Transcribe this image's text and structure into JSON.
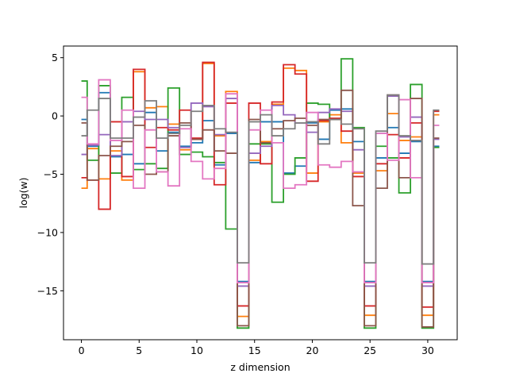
{
  "chart_data": {
    "type": "line",
    "drawstyle": "steps-mid",
    "xlabel": "z dimension",
    "ylabel": "log(w)",
    "xlim": [
      -1.55,
      32.55
    ],
    "ylim": [
      -19.2,
      6.0
    ],
    "xticks": [
      0,
      5,
      10,
      15,
      20,
      25,
      30
    ],
    "yticks": [
      5,
      0,
      -5,
      -10,
      -15
    ],
    "ytick_labels": [
      "5",
      "0",
      "−5",
      "−10",
      "−15"
    ],
    "grid": false,
    "x": [
      0,
      1,
      2,
      3,
      4,
      5,
      6,
      7,
      8,
      9,
      10,
      11,
      12,
      13,
      14,
      15,
      16,
      17,
      18,
      19,
      20,
      21,
      22,
      23,
      24,
      25,
      26,
      27,
      28,
      29,
      30,
      31
    ],
    "series": [
      {
        "color": "#1f77b4",
        "values": [
          -0.3,
          -2.6,
          2.0,
          -3.5,
          -3.3,
          -4.1,
          0.3,
          -3.0,
          -1.4,
          -2.6,
          -2.3,
          -0.4,
          -4.2,
          -1.5,
          -14.2,
          -4.0,
          -0.5,
          -0.5,
          -4.9,
          -4.3,
          -0.6,
          -2.0,
          0.5,
          0.6,
          -2.2,
          -14.2,
          -3.6,
          -1.0,
          -3.2,
          -2.2,
          -14.2,
          -2.6
        ]
      },
      {
        "color": "#ff7f0e",
        "values": [
          -6.2,
          -2.8,
          -5.4,
          -3.0,
          -5.5,
          3.8,
          0.7,
          0.8,
          -0.7,
          -2.9,
          -2.0,
          4.5,
          -1.7,
          2.1,
          -17.2,
          -3.8,
          -2.2,
          1.0,
          4.1,
          3.9,
          -4.9,
          -0.5,
          0.1,
          -2.3,
          -4.9,
          -17.1,
          -4.7,
          0.2,
          -2.1,
          -1.8,
          -17.1,
          0.1
        ]
      },
      {
        "color": "#2ca02c",
        "values": [
          3.0,
          -3.8,
          2.6,
          -4.9,
          1.6,
          -4.6,
          -4.1,
          -4.5,
          2.4,
          -3.3,
          -3.1,
          -3.5,
          -4.0,
          -9.7,
          -18.2,
          -2.4,
          -2.4,
          -7.4,
          -5.0,
          -3.6,
          1.1,
          1.0,
          -0.3,
          4.9,
          -1.0,
          -18.2,
          -2.6,
          -3.6,
          -6.6,
          2.7,
          -18.2,
          -2.7
        ]
      },
      {
        "color": "#d62728",
        "values": [
          -5.3,
          -5.5,
          -8.0,
          -0.5,
          -5.2,
          4.0,
          -2.7,
          -1.0,
          -1.2,
          0.5,
          -1.9,
          4.6,
          -5.9,
          1.1,
          -16.3,
          1.1,
          -4.1,
          1.2,
          4.4,
          3.6,
          -5.6,
          -0.4,
          -0.2,
          -1.3,
          -5.2,
          -16.3,
          -4.1,
          -1.6,
          -3.6,
          -0.6,
          -16.4,
          0.4
        ]
      },
      {
        "color": "#9467bd",
        "values": [
          -3.3,
          -2.5,
          -1.6,
          -3.4,
          -0.5,
          0.4,
          -0.3,
          -0.3,
          -1.0,
          -2.7,
          1.1,
          0.8,
          -1.6,
          1.5,
          -14.6,
          -3.2,
          -2.6,
          0.9,
          0.1,
          -0.6,
          -1.4,
          0.3,
          0.6,
          0.4,
          -2.9,
          -14.6,
          -1.5,
          1.7,
          -1.8,
          -0.1,
          -14.6,
          -2.0
        ]
      },
      {
        "color": "#8c564b",
        "values": [
          -0.6,
          -5.5,
          -3.4,
          -2.6,
          -2.2,
          -0.8,
          -5.0,
          -4.8,
          -1.7,
          -0.6,
          -2.0,
          -1.2,
          -3.0,
          -3.2,
          -18.0,
          -0.3,
          -2.3,
          -1.1,
          -0.4,
          -0.2,
          -0.8,
          -0.3,
          -0.3,
          2.2,
          -7.7,
          -18.0,
          -6.2,
          1.8,
          -5.3,
          1.5,
          -18.1,
          -1.9
        ]
      },
      {
        "color": "#e377c2",
        "values": [
          1.6,
          -2.4,
          3.1,
          -2.1,
          0.5,
          -6.2,
          -1.2,
          -4.8,
          -6.0,
          -1.1,
          -3.9,
          -5.4,
          -4.5,
          1.9,
          -14.3,
          -1.2,
          0.5,
          -2.3,
          -6.2,
          -5.9,
          0.3,
          -4.2,
          -4.4,
          -3.9,
          -4.8,
          -14.3,
          -1.5,
          -3.8,
          1.4,
          -5.3,
          -14.3,
          -0.8
        ]
      },
      {
        "color": "#7f7f7f",
        "values": [
          -1.7,
          0.5,
          1.5,
          -1.9,
          -1.9,
          -0.1,
          1.3,
          -1.9,
          -1.5,
          -0.8,
          0.4,
          0.9,
          -1.1,
          -1.4,
          -12.6,
          -0.5,
          0.1,
          -1.7,
          -1.1,
          -0.6,
          -0.5,
          -2.4,
          -0.3,
          -0.7,
          -1.1,
          -12.6,
          -1.3,
          1.8,
          -1.7,
          -2.1,
          -12.7,
          0.5
        ]
      }
    ]
  }
}
